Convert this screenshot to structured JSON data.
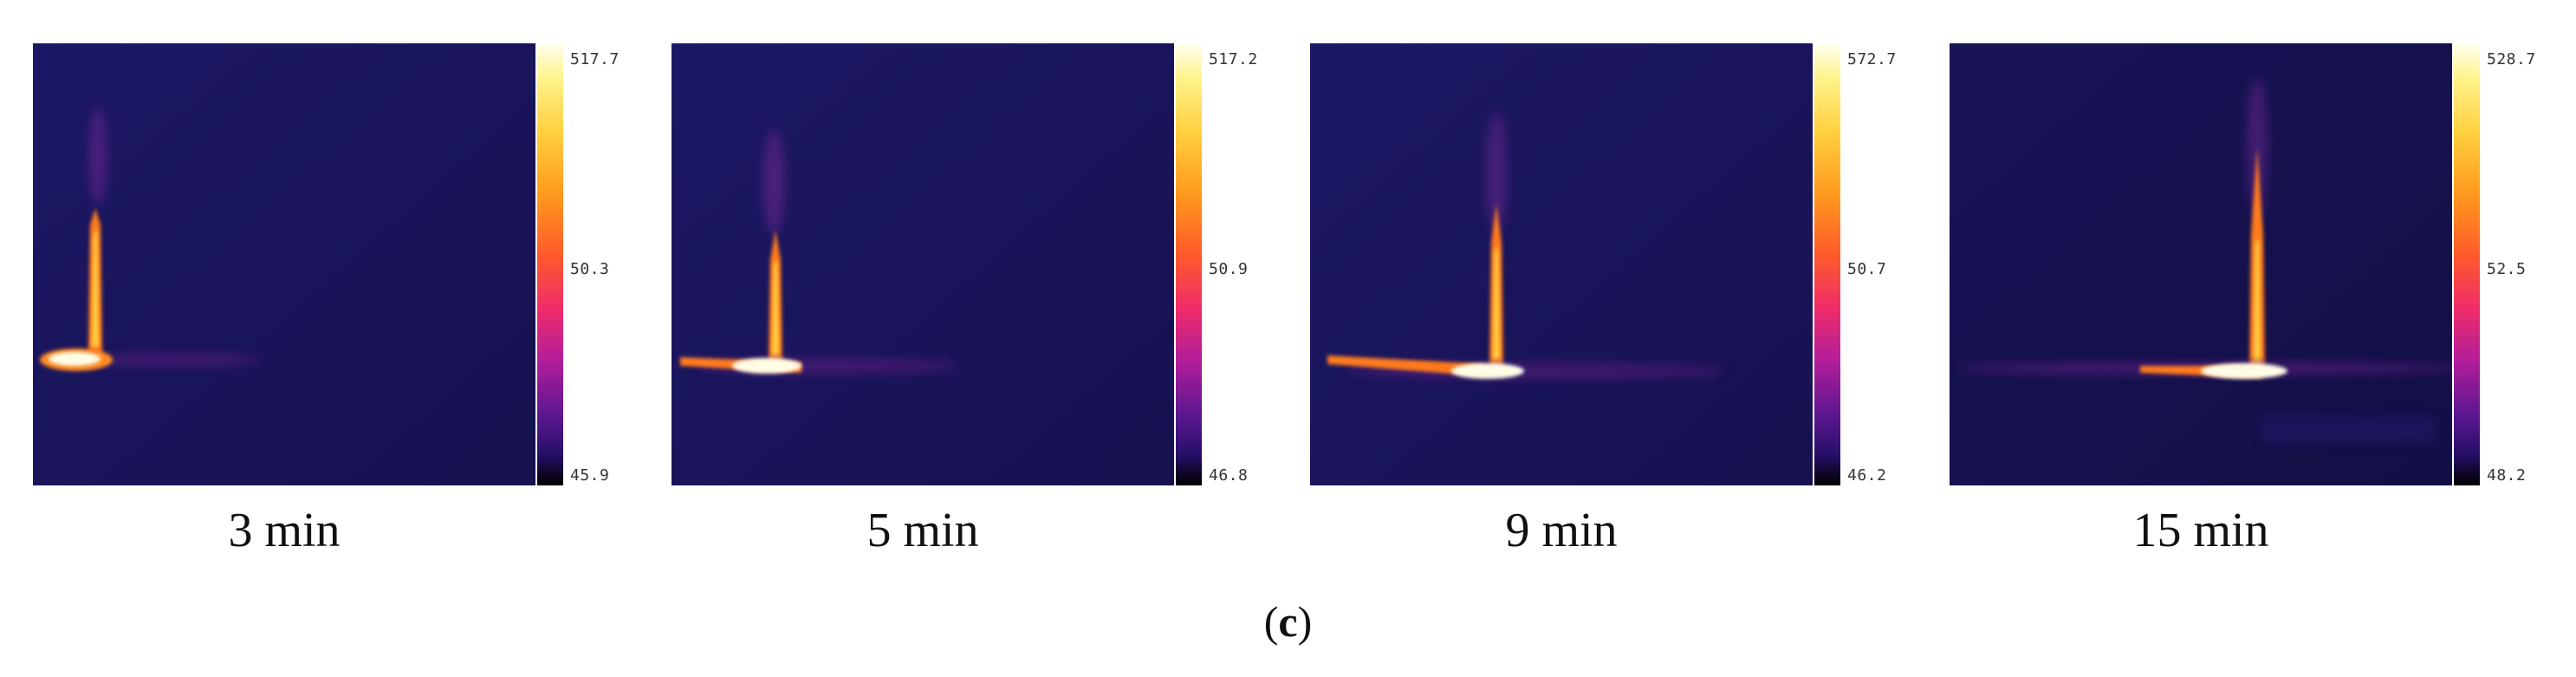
{
  "figure": {
    "panels": [
      {
        "time_label": "3 min",
        "scale": {
          "max": "517.7",
          "mid": "50.3",
          "min": "45.9"
        }
      },
      {
        "time_label": "5 min",
        "scale": {
          "max": "517.2",
          "mid": "50.9",
          "min": "46.8"
        }
      },
      {
        "time_label": "9 min",
        "scale": {
          "max": "572.7",
          "mid": "50.7",
          "min": "46.2"
        }
      },
      {
        "time_label": "15 min",
        "scale": {
          "max": "528.7",
          "mid": "52.5",
          "min": "48.2"
        }
      }
    ],
    "caption": {
      "open": "(",
      "letter": "c",
      "close": ")"
    }
  },
  "colors": {
    "background": "#1a1660",
    "hot_core": "#fffde6",
    "hot": "#ffcf40",
    "warm": "#ff7a1a",
    "plume": "#e0308a"
  }
}
